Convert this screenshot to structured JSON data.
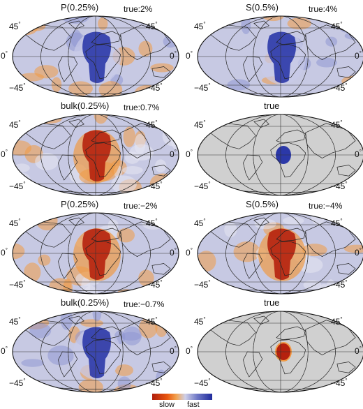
{
  "lat_labels": {
    "north": "45",
    "equator": "0",
    "south": "−45",
    "degree": "°"
  },
  "panels": [
    {
      "title": "P(0.25%)",
      "true_label": "true:2%",
      "pattern": "anomaly",
      "center": "fast"
    },
    {
      "title": "S(0.5%)",
      "true_label": "true:4%",
      "pattern": "anomaly",
      "center": "fast"
    },
    {
      "title": "bulk(0.25%)",
      "true_label": "true:0.7%",
      "pattern": "anomaly-noisy",
      "center": "slow"
    },
    {
      "title": "true",
      "true_label": "",
      "pattern": "true-model",
      "center": "fast"
    },
    {
      "title": "P(0.25%)",
      "true_label": "true:−2%",
      "pattern": "anomaly",
      "center": "slow"
    },
    {
      "title": "S(0.5%)",
      "true_label": "true:−4%",
      "pattern": "anomaly",
      "center": "slow"
    },
    {
      "title": "bulk(0.25%)",
      "true_label": "true:−0.7%",
      "pattern": "anomaly-noisy",
      "center": "fast"
    },
    {
      "title": "true",
      "true_label": "",
      "pattern": "true-model",
      "center": "slow"
    }
  ],
  "colorbar": {
    "left_label": "slow",
    "right_label": "fast"
  },
  "colors": {
    "slow": "#b5210e",
    "fast": "#2b38a8",
    "neutral": "#c7c9e3",
    "orange": "#f09a45",
    "ocean_true": "#d0d0d0"
  }
}
